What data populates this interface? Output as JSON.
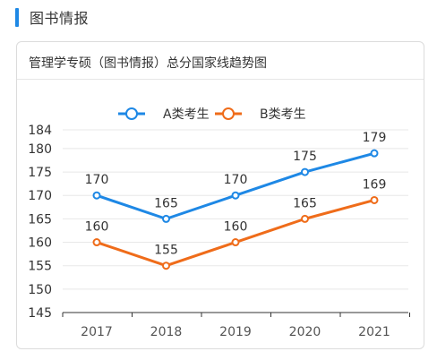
{
  "section": {
    "title": "图书情报",
    "accent_color": "#1e88e5"
  },
  "card": {
    "title": "管理学专硕（图书情报）总分国家线趋势图"
  },
  "chart_data": {
    "type": "line",
    "categories": [
      "2017",
      "2018",
      "2019",
      "2020",
      "2021"
    ],
    "series": [
      {
        "name": "A类考生",
        "values": [
          170,
          165,
          170,
          175,
          179
        ],
        "color": "#1e88e5"
      },
      {
        "name": "B类考生",
        "values": [
          160,
          155,
          160,
          165,
          169
        ],
        "color": "#ef6c1a"
      }
    ],
    "y_ticks": [
      145,
      150,
      155,
      160,
      165,
      170,
      175,
      180,
      184
    ],
    "ylim": [
      145,
      184
    ],
    "grid": true,
    "legend": "top-center",
    "data_labels": true
  }
}
